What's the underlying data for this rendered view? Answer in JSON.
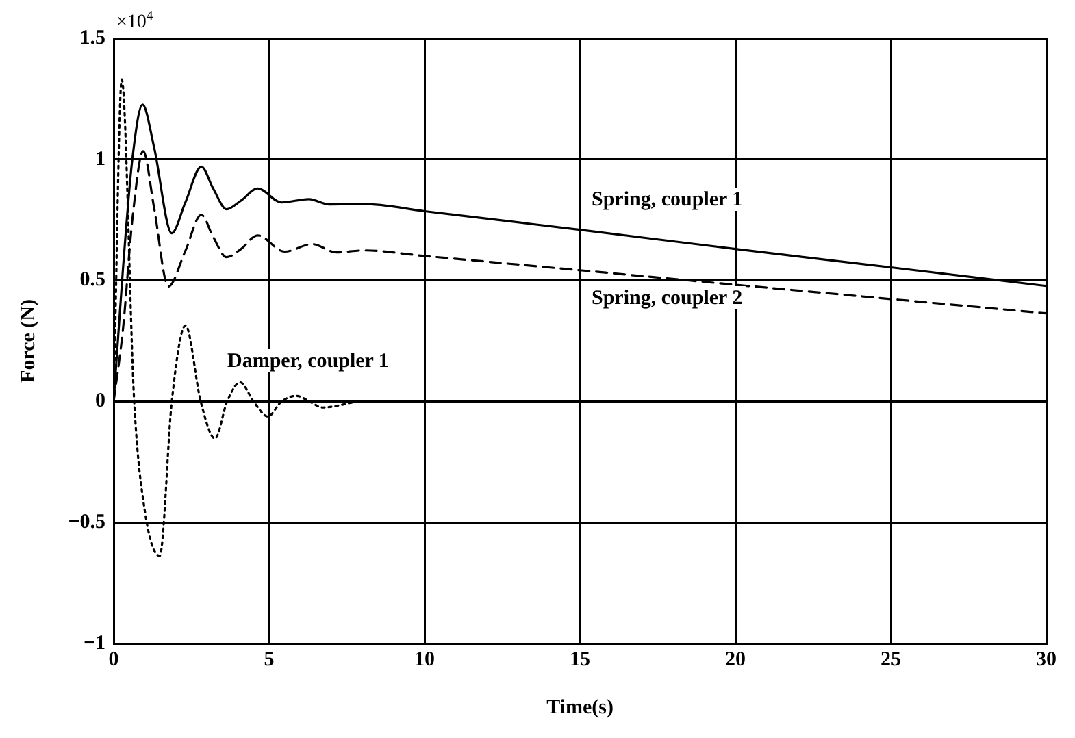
{
  "chart_data": {
    "type": "line",
    "xlabel": "Time(s)",
    "ylabel": "Force (N)",
    "annotations": [
      "×10$^{4}$"
    ],
    "xlim": [
      0,
      30
    ],
    "xticks": [
      0,
      5,
      10,
      15,
      20,
      25,
      30
    ],
    "ylim": [
      -1,
      1.5
    ],
    "yticks": [
      {
        "value": -1,
        "label": "−1"
      },
      {
        "value": -0.5,
        "label": "−0.5"
      },
      0,
      0.5,
      1,
      1.5
    ],
    "grid": true,
    "legend": false,
    "marker": "none",
    "series": [
      {
        "name": "Spring, coupler 1",
        "color": "#000000",
        "line_style": "solid",
        "x": [
          0,
          0.3,
          0.6,
          0.93,
          1.3,
          1.87,
          2.3,
          2.82,
          3.2,
          3.63,
          4.1,
          4.63,
          5.4,
          6.28,
          6.94,
          8.04,
          10,
          15,
          20,
          25,
          30
        ],
        "values": [
          0,
          0.55,
          1.0,
          1.226,
          1.05,
          0.695,
          0.82,
          0.97,
          0.88,
          0.794,
          0.83,
          0.88,
          0.822,
          0.836,
          0.814,
          0.816,
          0.786,
          0.709,
          0.63,
          0.554,
          0.477
        ]
      },
      {
        "name": "Spring, coupler 2",
        "color": "#000000",
        "line_style": "dashed",
        "x": [
          0,
          0.3,
          0.6,
          0.95,
          1.3,
          1.76,
          2.3,
          2.82,
          3.2,
          3.63,
          4.1,
          4.63,
          5.5,
          6.39,
          7.16,
          8.04,
          10,
          15,
          20,
          25,
          30
        ],
        "values": [
          0,
          0.3,
          0.75,
          1.034,
          0.8,
          0.475,
          0.62,
          0.771,
          0.68,
          0.596,
          0.63,
          0.686,
          0.619,
          0.65,
          0.616,
          0.624,
          0.601,
          0.542,
          0.482,
          0.423,
          0.364
        ]
      },
      {
        "name": "Damper, coupler 1",
        "color": "#000000",
        "line_style": "dotted",
        "x": [
          0,
          0.26,
          0.66,
          1.0,
          1.48,
          1.87,
          2.31,
          2.8,
          3.26,
          3.65,
          4.07,
          4.5,
          4.96,
          5.4,
          5.88,
          6.3,
          6.72,
          8.04,
          30
        ],
        "values": [
          0,
          1.33,
          0,
          -0.45,
          -0.638,
          0,
          0.314,
          0,
          -0.153,
          0,
          0.079,
          0,
          -0.062,
          0,
          0.023,
          0,
          -0.025,
          0,
          0
        ]
      }
    ]
  }
}
